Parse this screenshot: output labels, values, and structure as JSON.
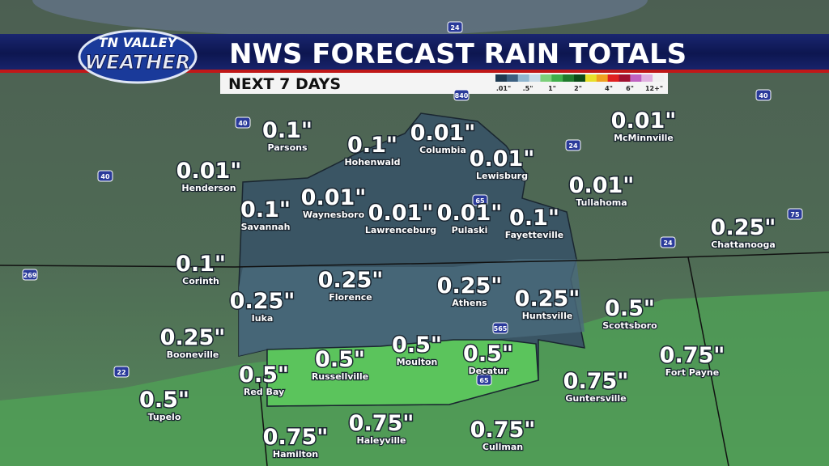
{
  "header": {
    "logo_top": "TN VALLEY",
    "logo_bottom": "WEATHER",
    "title": "NWS FORECAST RAIN TOTALS",
    "subtitle": "NEXT 7 DAYS"
  },
  "legend": {
    "labels": [
      ".01\"",
      ".5\"",
      "1\"",
      "2\"",
      "4\"",
      "6\"",
      "12+\""
    ],
    "colors": [
      "#1e3a52",
      "#3b5f80",
      "#8fb5cf",
      "#c8dbe8",
      "#7ccf7a",
      "#3fae4a",
      "#1f7a2c",
      "#0c4a18",
      "#e8e02a",
      "#f0a020",
      "#e02020",
      "#a01030",
      "#c060c0",
      "#e0b0e0",
      "#f0f0f0"
    ]
  },
  "locations": [
    {
      "amount": "0.1\"",
      "name": "Parsons"
    },
    {
      "amount": "0.1\"",
      "name": "Hohenwald"
    },
    {
      "amount": "0.01\"",
      "name": "Columbia"
    },
    {
      "amount": "0.01\"",
      "name": "Lewisburg"
    },
    {
      "amount": "0.01\"",
      "name": "McMinnville"
    },
    {
      "amount": "0.01\"",
      "name": "Henderson"
    },
    {
      "amount": "0.01\"",
      "name": "Waynesboro"
    },
    {
      "amount": "0.1\"",
      "name": "Savannah"
    },
    {
      "amount": "0.01\"",
      "name": "Lawrenceburg"
    },
    {
      "amount": "0.01\"",
      "name": "Pulaski"
    },
    {
      "amount": "0.1\"",
      "name": "Fayetteville"
    },
    {
      "amount": "0.01\"",
      "name": "Tullahoma"
    },
    {
      "amount": "0.25\"",
      "name": "Chattanooga"
    },
    {
      "amount": "0.1\"",
      "name": "Corinth"
    },
    {
      "amount": "0.25\"",
      "name": "Florence"
    },
    {
      "amount": "0.25\"",
      "name": "Athens"
    },
    {
      "amount": "0.25\"",
      "name": "Iuka"
    },
    {
      "amount": "0.25\"",
      "name": "Huntsville"
    },
    {
      "amount": "0.5\"",
      "name": "Scottsboro"
    },
    {
      "amount": "0.25\"",
      "name": "Booneville"
    },
    {
      "amount": "0.75\"",
      "name": "Fort Payne"
    },
    {
      "amount": "0.5\"",
      "name": "Russellville"
    },
    {
      "amount": "0.5\"",
      "name": "Moulton"
    },
    {
      "amount": "0.5\"",
      "name": "Decatur"
    },
    {
      "amount": "0.5\"",
      "name": "Red Bay"
    },
    {
      "amount": "0.75\"",
      "name": "Guntersville"
    },
    {
      "amount": "0.5\"",
      "name": "Tupelo"
    },
    {
      "amount": "0.75\"",
      "name": "Haleyville"
    },
    {
      "amount": "0.75\"",
      "name": "Hamilton"
    },
    {
      "amount": "0.75\"",
      "name": "Cullman"
    }
  ],
  "highways": [
    "40",
    "40",
    "840",
    "24",
    "65",
    "24",
    "75",
    "40",
    "269",
    "565",
    "65",
    "22",
    "24"
  ]
}
